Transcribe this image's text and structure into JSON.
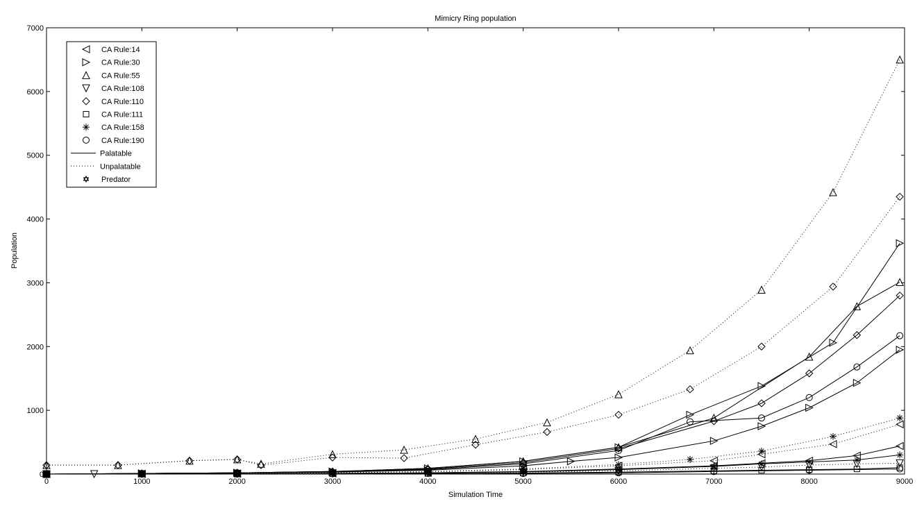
{
  "chart_data": {
    "type": "line",
    "title": "Mimicry Ring population",
    "xlabel": "Simulation Time",
    "ylabel": "Population",
    "xlim": [
      0,
      9000
    ],
    "ylim": [
      0,
      7000
    ],
    "xticks": [
      0,
      1000,
      2000,
      3000,
      4000,
      5000,
      6000,
      7000,
      8000,
      9000
    ],
    "yticks": [
      0,
      1000,
      2000,
      3000,
      4000,
      5000,
      6000,
      7000
    ],
    "grid": false,
    "legend_position": "top-left",
    "legend": [
      {
        "label": "CA Rule:14",
        "marker": "triangle-left"
      },
      {
        "label": "CA Rule:30",
        "marker": "triangle-right"
      },
      {
        "label": "CA Rule:55",
        "marker": "triangle-up"
      },
      {
        "label": "CA Rule:108",
        "marker": "triangle-down"
      },
      {
        "label": "CA Rule:110",
        "marker": "diamond"
      },
      {
        "label": "CA Rule:111",
        "marker": "square"
      },
      {
        "label": "CA Rule:158",
        "marker": "asterisk"
      },
      {
        "label": "CA Rule:190",
        "marker": "circle"
      },
      {
        "label": "Palatable",
        "style": "solid"
      },
      {
        "label": "Unpalatable",
        "style": "dotted"
      },
      {
        "label": "Predator",
        "marker": "hexagram"
      }
    ],
    "series": [
      {
        "name": "CA Rule:55",
        "style": "dotted",
        "marker": "triangle-up",
        "points": [
          [
            0,
            140
          ],
          [
            750,
            140
          ],
          [
            1500,
            210
          ],
          [
            2000,
            230
          ],
          [
            2250,
            160
          ],
          [
            3000,
            310
          ],
          [
            3750,
            380
          ],
          [
            4500,
            550
          ],
          [
            5250,
            810
          ],
          [
            6000,
            1250
          ],
          [
            6750,
            1940
          ],
          [
            7500,
            2890
          ],
          [
            8250,
            4420
          ],
          [
            8950,
            6500
          ]
        ]
      },
      {
        "name": "CA Rule:110",
        "style": "dotted",
        "marker": "diamond",
        "points": [
          [
            0,
            140
          ],
          [
            750,
            140
          ],
          [
            1500,
            210
          ],
          [
            2000,
            230
          ],
          [
            2250,
            140
          ],
          [
            3000,
            260
          ],
          [
            3750,
            250
          ],
          [
            4500,
            460
          ],
          [
            5250,
            660
          ],
          [
            6000,
            930
          ],
          [
            6750,
            1330
          ],
          [
            7500,
            2000
          ],
          [
            8250,
            2940
          ],
          [
            8950,
            4350
          ]
        ]
      },
      {
        "name": "CA Rule:30",
        "style": "solid",
        "marker": "triangle-right",
        "points": [
          [
            0,
            0
          ],
          [
            1000,
            10
          ],
          [
            2000,
            20
          ],
          [
            3000,
            40
          ],
          [
            4000,
            90
          ],
          [
            5000,
            200
          ],
          [
            6000,
            420
          ],
          [
            6750,
            930
          ],
          [
            7500,
            1380
          ],
          [
            8250,
            2060
          ],
          [
            8950,
            3620
          ]
        ]
      },
      {
        "name": "CA Rule:55",
        "style": "solid",
        "marker": "triangle-up",
        "points": [
          [
            0,
            0
          ],
          [
            1000,
            10
          ],
          [
            2000,
            20
          ],
          [
            3000,
            40
          ],
          [
            4000,
            90
          ],
          [
            5000,
            200
          ],
          [
            6000,
            420
          ],
          [
            7000,
            880
          ],
          [
            8000,
            1840
          ],
          [
            8500,
            2630
          ],
          [
            8950,
            3010
          ]
        ]
      },
      {
        "name": "CA Rule:110",
        "style": "solid",
        "marker": "diamond",
        "points": [
          [
            0,
            0
          ],
          [
            1000,
            10
          ],
          [
            2000,
            20
          ],
          [
            3000,
            40
          ],
          [
            4000,
            80
          ],
          [
            5000,
            180
          ],
          [
            6000,
            400
          ],
          [
            7000,
            830
          ],
          [
            7500,
            1110
          ],
          [
            8000,
            1580
          ],
          [
            8500,
            2180
          ],
          [
            8950,
            2800
          ]
        ]
      },
      {
        "name": "CA Rule:190",
        "style": "solid",
        "marker": "circle",
        "points": [
          [
            0,
            0
          ],
          [
            1000,
            10
          ],
          [
            2000,
            20
          ],
          [
            3000,
            30
          ],
          [
            4000,
            70
          ],
          [
            5000,
            160
          ],
          [
            6000,
            370
          ],
          [
            6750,
            820
          ],
          [
            7500,
            880
          ],
          [
            8000,
            1200
          ],
          [
            8500,
            1680
          ],
          [
            8950,
            2170
          ]
        ]
      },
      {
        "name": "CA Rule:30",
        "style": "solid",
        "marker": "triangle-right",
        "points": [
          [
            0,
            0
          ],
          [
            1000,
            10
          ],
          [
            2000,
            20
          ],
          [
            3000,
            30
          ],
          [
            4000,
            60
          ],
          [
            5000,
            130
          ],
          [
            5500,
            200
          ],
          [
            6000,
            260
          ],
          [
            7000,
            520
          ],
          [
            7500,
            750
          ],
          [
            8000,
            1040
          ],
          [
            8500,
            1430
          ],
          [
            8950,
            1950
          ]
        ]
      },
      {
        "name": "CA Rule:158",
        "style": "dotted",
        "marker": "asterisk",
        "points": [
          [
            0,
            0
          ],
          [
            1000,
            5
          ],
          [
            2000,
            10
          ],
          [
            3000,
            20
          ],
          [
            4000,
            40
          ],
          [
            5000,
            80
          ],
          [
            6000,
            150
          ],
          [
            6750,
            230
          ],
          [
            7500,
            360
          ],
          [
            8250,
            590
          ],
          [
            8950,
            880
          ]
        ]
      },
      {
        "name": "CA Rule:14",
        "style": "dotted",
        "marker": "triangle-left",
        "points": [
          [
            0,
            0
          ],
          [
            1000,
            5
          ],
          [
            2000,
            10
          ],
          [
            3000,
            20
          ],
          [
            4000,
            35
          ],
          [
            5000,
            70
          ],
          [
            6000,
            130
          ],
          [
            7000,
            210
          ],
          [
            7500,
            310
          ],
          [
            8250,
            470
          ],
          [
            8950,
            780
          ]
        ]
      },
      {
        "name": "CA Rule:14",
        "style": "solid",
        "marker": "triangle-left",
        "points": [
          [
            0,
            0
          ],
          [
            1000,
            0
          ],
          [
            2000,
            5
          ],
          [
            3000,
            10
          ],
          [
            4000,
            20
          ],
          [
            5000,
            40
          ],
          [
            6000,
            80
          ],
          [
            7000,
            130
          ],
          [
            7500,
            170
          ],
          [
            8000,
            210
          ],
          [
            8500,
            290
          ],
          [
            8950,
            440
          ]
        ]
      },
      {
        "name": "CA Rule:158",
        "style": "solid",
        "marker": "asterisk",
        "points": [
          [
            0,
            0
          ],
          [
            1000,
            0
          ],
          [
            2000,
            5
          ],
          [
            3000,
            10
          ],
          [
            4000,
            20
          ],
          [
            5000,
            35
          ],
          [
            6000,
            70
          ],
          [
            7000,
            120
          ],
          [
            7500,
            160
          ],
          [
            8000,
            190
          ],
          [
            8500,
            220
          ],
          [
            8950,
            300
          ]
        ]
      },
      {
        "name": "CA Rule:108",
        "style": "dotted",
        "marker": "triangle-down",
        "points": [
          [
            0,
            0
          ],
          [
            500,
            0
          ],
          [
            1000,
            0
          ],
          [
            2000,
            5
          ],
          [
            3000,
            10
          ],
          [
            4000,
            20
          ],
          [
            5000,
            30
          ],
          [
            6000,
            50
          ],
          [
            7000,
            90
          ],
          [
            7500,
            110
          ],
          [
            8000,
            140
          ],
          [
            8500,
            160
          ],
          [
            8950,
            170
          ]
        ]
      },
      {
        "name": "CA Rule:111",
        "style": "solid",
        "marker": "square",
        "points": [
          [
            0,
            0
          ],
          [
            1000,
            0
          ],
          [
            2000,
            0
          ],
          [
            3000,
            5
          ],
          [
            4000,
            10
          ],
          [
            5000,
            15
          ],
          [
            6000,
            30
          ],
          [
            7000,
            50
          ],
          [
            7500,
            60
          ],
          [
            8000,
            70
          ],
          [
            8500,
            80
          ],
          [
            8950,
            100
          ]
        ]
      },
      {
        "name": "CA Rule:190",
        "style": "solid",
        "marker": "circle",
        "points": [
          [
            0,
            0
          ],
          [
            1000,
            0
          ],
          [
            2000,
            0
          ],
          [
            3000,
            5
          ],
          [
            4000,
            10
          ],
          [
            5000,
            10
          ],
          [
            6000,
            20
          ],
          [
            7000,
            40
          ],
          [
            8000,
            60
          ],
          [
            8950,
            80
          ]
        ]
      }
    ]
  }
}
